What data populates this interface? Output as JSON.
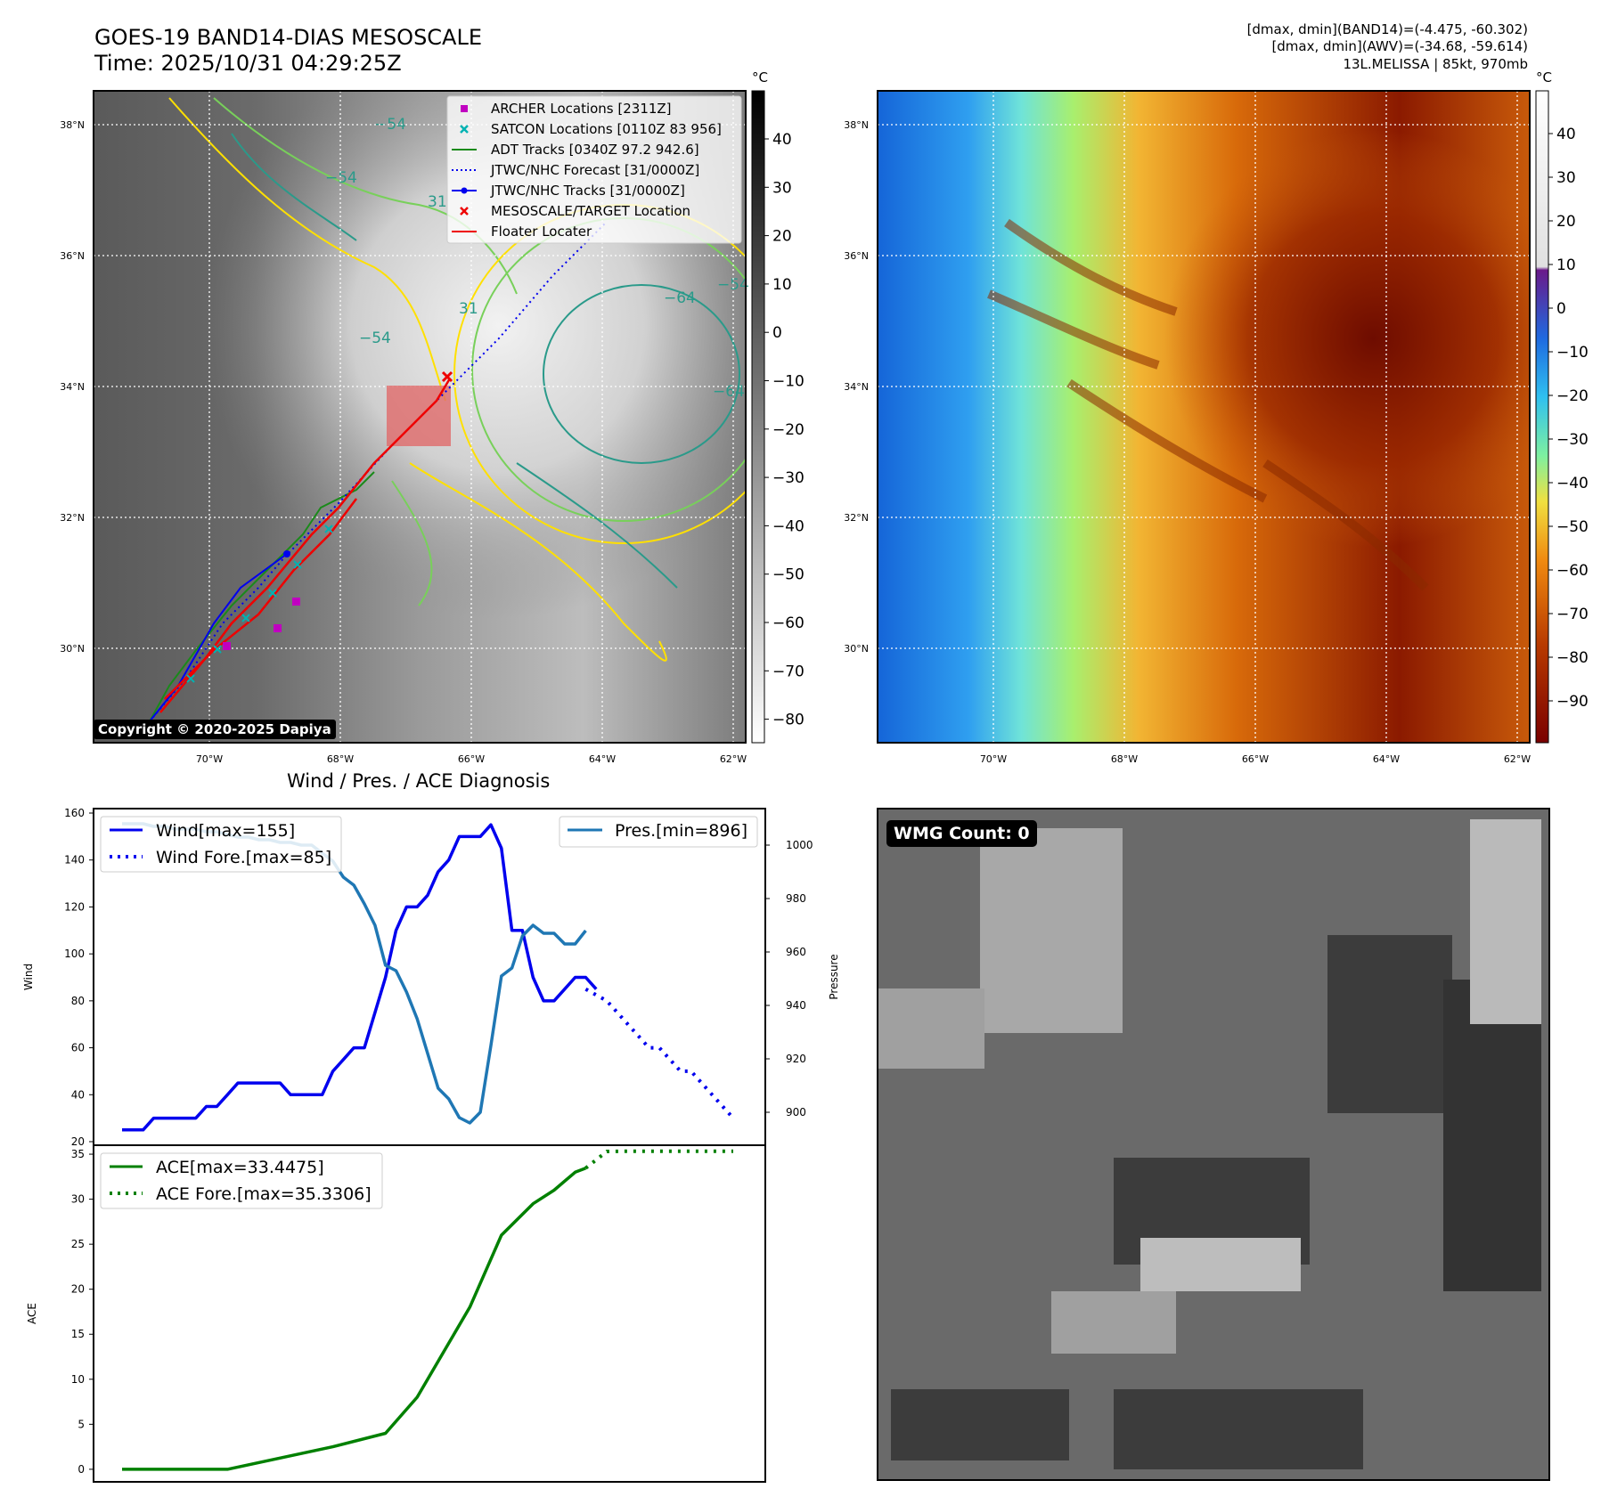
{
  "header": {
    "title_line1": "GOES-19 BAND14-DIAS MESOSCALE",
    "title_line2": "Time: 2025/10/31 04:29:25Z",
    "info_line1": "[dmax, dmin](BAND14)=(-4.475, -60.302)",
    "info_line2": "[dmax, dmin](AWV)=(-34.68, -59.614)",
    "info_line3": "13L.MELISSA | 85kt, 970mb"
  },
  "map_left": {
    "lat_ticks": [
      "38°N",
      "36°N",
      "34°N",
      "32°N",
      "30°N"
    ],
    "lon_ticks": [
      "70°W",
      "68°W",
      "66°W",
      "64°W",
      "62°W"
    ],
    "colorbar_unit": "°C",
    "colorbar_ticks": [
      "40",
      "30",
      "20",
      "10",
      "0",
      "−10",
      "−20",
      "−30",
      "−40",
      "−50",
      "−60",
      "−70",
      "−80"
    ],
    "contour_labels": [
      "−54",
      "−54",
      "−54",
      "−64",
      "−64",
      "−54",
      "31",
      "31"
    ],
    "copyright": "Copyright © 2020-2025 Dapiya",
    "legend": [
      {
        "label": "ARCHER Locations [2311Z]",
        "color": "#c000c0",
        "marker": "square"
      },
      {
        "label": "SATCON Locations [0110Z 83 956]",
        "color": "#00b3b3",
        "marker": "x"
      },
      {
        "label": "ADT Tracks [0340Z 97.2 942.6]",
        "color": "#1a8a1a",
        "marker": "line"
      },
      {
        "label": "JTWC/NHC Forecast [31/0000Z]",
        "color": "#0000ee",
        "marker": "dotted"
      },
      {
        "label": "JTWC/NHC Tracks [31/0000Z]",
        "color": "#0000ee",
        "marker": "line-dot"
      },
      {
        "label": "MESOSCALE/TARGET Location",
        "color": "#ee0000",
        "marker": "x"
      },
      {
        "label": "Floater Locater",
        "color": "#ee0000",
        "marker": "line"
      }
    ]
  },
  "map_right": {
    "lat_ticks": [
      "38°N",
      "36°N",
      "34°N",
      "32°N",
      "30°N"
    ],
    "lon_ticks": [
      "70°W",
      "68°W",
      "66°W",
      "64°W",
      "62°W"
    ],
    "colorbar_unit": "°C",
    "colorbar_ticks": [
      "40",
      "30",
      "20",
      "10",
      "0",
      "−10",
      "−20",
      "−30",
      "−40",
      "−50",
      "−60",
      "−70",
      "−80",
      "−90"
    ]
  },
  "diagnosis_title": "Wind / Pres. / ACE Diagnosis",
  "wmg_label": "WMG Count: 0",
  "chart_data": [
    {
      "type": "line",
      "title": "",
      "xlabel": "",
      "ylabel": "Wind",
      "ylabel_right": "Pressure",
      "ylim": [
        20,
        160
      ],
      "ylim_right": [
        889,
        1012
      ],
      "yticks": [
        20,
        40,
        60,
        80,
        100,
        120,
        140,
        160
      ],
      "yticks_right": [
        900,
        920,
        940,
        960,
        980,
        1000
      ],
      "x_index_range": [
        0,
        52
      ],
      "series": [
        {
          "name": "Wind[max=155]",
          "axis": "left",
          "style": "solid",
          "color": "#0000ee",
          "x": [
            0,
            2,
            3,
            4,
            5,
            6,
            7,
            8,
            9,
            10,
            11,
            12,
            13,
            14,
            15,
            16,
            17,
            18,
            19,
            20,
            21,
            22,
            23,
            24,
            25,
            26,
            27,
            28,
            29,
            30,
            31,
            32,
            33,
            34,
            35,
            36,
            37,
            38,
            39,
            40,
            41,
            42,
            43,
            44,
            45,
            46,
            47,
            48,
            49,
            50,
            51,
            52
          ],
          "values": [
            25,
            25,
            30,
            30,
            30,
            30,
            30,
            35,
            35,
            40,
            45,
            45,
            45,
            45,
            45,
            40,
            40,
            40,
            40,
            50,
            55,
            60,
            60,
            75,
            90,
            110,
            120,
            120,
            125,
            135,
            140,
            150,
            150,
            150,
            155,
            145,
            110,
            110,
            90,
            80,
            80,
            85,
            90,
            90,
            85,
            null,
            null,
            null,
            null,
            null,
            null,
            null
          ]
        },
        {
          "name": "Wind Fore.[max=85]",
          "axis": "left",
          "style": "dotted",
          "color": "#0000ee",
          "x": [
            44,
            46,
            47,
            48,
            49,
            50,
            51,
            52,
            53,
            54,
            55,
            56,
            57,
            58
          ],
          "values": [
            85,
            80,
            75,
            70,
            65,
            60,
            60,
            55,
            50,
            50,
            45,
            40,
            35,
            30
          ]
        },
        {
          "name": "Pres.[min=896]",
          "axis": "right",
          "style": "solid",
          "color": "#1f77b4",
          "x": [
            0,
            2,
            3,
            4,
            5,
            6,
            7,
            8,
            9,
            10,
            11,
            12,
            13,
            14,
            15,
            16,
            17,
            18,
            19,
            20,
            21,
            22,
            23,
            24,
            25,
            26,
            27,
            28,
            29,
            30,
            31,
            32,
            33,
            34,
            35,
            36,
            37,
            38,
            39,
            40,
            41,
            42,
            43,
            44
          ],
          "values": [
            1008,
            1008,
            1007,
            1007,
            1006,
            1006,
            1006,
            1005,
            1005,
            1004,
            1003,
            1003,
            1002,
            1002,
            1001,
            1001,
            1000,
            1000,
            997,
            994,
            988,
            985,
            978,
            970,
            955,
            953,
            945,
            935,
            922,
            909,
            905,
            898,
            896,
            900,
            925,
            951,
            954,
            966,
            970,
            967,
            967,
            963,
            963,
            968
          ]
        },
        {
          "name": "ACE[max=33.4475]",
          "axis": "ace",
          "style": "solid",
          "color": "#008000",
          "x": [
            0,
            10,
            20,
            25,
            28,
            30,
            33,
            36,
            39,
            41,
            43,
            44
          ],
          "values": [
            0,
            0,
            2.5,
            4,
            8,
            12,
            18,
            26,
            29.5,
            31,
            33,
            33.4475
          ]
        },
        {
          "name": "ACE Fore.[max=35.3306]",
          "axis": "ace",
          "style": "dotted",
          "color": "#008000",
          "x": [
            44,
            46,
            48,
            52,
            58
          ],
          "values": [
            33.4475,
            35.3,
            35.33,
            35.33,
            35.3306
          ]
        }
      ]
    },
    {
      "type": "line",
      "title": "",
      "xlabel": "",
      "ylabel": "ACE",
      "ylim": [
        -1,
        35.5
      ],
      "yticks": [
        0,
        5,
        10,
        15,
        20,
        25,
        30,
        35
      ],
      "series_ref": [
        "ACE[max=33.4475]",
        "ACE Fore.[max=35.3306]"
      ]
    }
  ]
}
